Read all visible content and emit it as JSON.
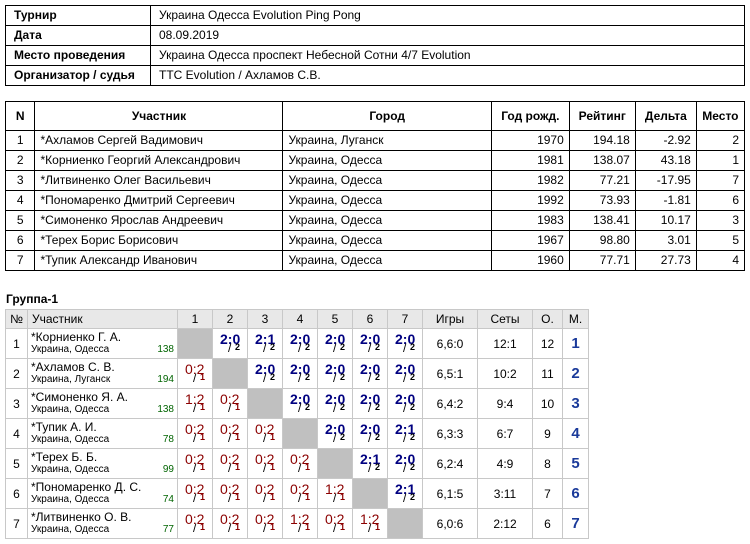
{
  "info": {
    "rows": [
      {
        "label": "Турнир",
        "value": "Украина Одесса Evolution Ping Pong"
      },
      {
        "label": "Дата",
        "value": "08.09.2019"
      },
      {
        "label": "Место проведения",
        "value": "Украина Одесса проспект Небесной Сотни 4/7 Evolution"
      },
      {
        "label": "Организатор / судья",
        "value": "TTC Evolution / Ахламов С.В."
      }
    ]
  },
  "participants": {
    "headers": [
      "N",
      "Участник",
      "Город",
      "Год рожд.",
      "Рейтинг",
      "Дельта",
      "Место"
    ],
    "rows": [
      [
        "1",
        "*Ахламов Сергей Вадимович",
        "Украина, Луганск",
        "1970",
        "194.18",
        "-2.92",
        "2"
      ],
      [
        "2",
        "*Корниенко Георгий Александрович",
        "Украина, Одесса",
        "1981",
        "138.07",
        "43.18",
        "1"
      ],
      [
        "3",
        "*Литвиненко Олег Васильевич",
        "Украина, Одесса",
        "1982",
        "77.21",
        "-17.95",
        "7"
      ],
      [
        "4",
        "*Пономаренко Дмитрий Сергеевич",
        "Украина, Одесса",
        "1992",
        "73.93",
        "-1.81",
        "6"
      ],
      [
        "5",
        "*Симоненко Ярослав Андреевич",
        "Украина, Одесса",
        "1983",
        "138.41",
        "10.17",
        "3"
      ],
      [
        "6",
        "*Терех Борис Борисович",
        "Украина, Одесса",
        "1967",
        "98.80",
        "3.01",
        "5"
      ],
      [
        "7",
        "*Тупик Александр Иванович",
        "Украина, Одесса",
        "1960",
        "77.71",
        "27.73",
        "4"
      ]
    ]
  },
  "group": {
    "title": "Группа-1",
    "headers": [
      "№",
      "Участник",
      "1",
      "2",
      "3",
      "4",
      "5",
      "6",
      "7",
      "Игры",
      "Сеты",
      "О.",
      "М."
    ],
    "rows": [
      {
        "n": "1",
        "name": "*Корниенко Г. А.",
        "city": "Украина, Одесса",
        "rating": "138",
        "results": [
          null,
          [
            "2:0",
            "2"
          ],
          [
            "2:1",
            "2"
          ],
          [
            "2:0",
            "2"
          ],
          [
            "2:0",
            "2"
          ],
          [
            "2:0",
            "2"
          ],
          [
            "2:0",
            "2"
          ]
        ],
        "games": "6,6:0",
        "sets": "12:1",
        "points": "12",
        "place": "1"
      },
      {
        "n": "2",
        "name": "*Ахламов С. В.",
        "city": "Украина, Луганск",
        "rating": "194",
        "results": [
          [
            "0:2",
            "1"
          ],
          null,
          [
            "2:0",
            "2"
          ],
          [
            "2:0",
            "2"
          ],
          [
            "2:0",
            "2"
          ],
          [
            "2:0",
            "2"
          ],
          [
            "2:0",
            "2"
          ]
        ],
        "games": "6,5:1",
        "sets": "10:2",
        "points": "11",
        "place": "2"
      },
      {
        "n": "3",
        "name": "*Симоненко Я. А.",
        "city": "Украина, Одесса",
        "rating": "138",
        "results": [
          [
            "1:2",
            "1"
          ],
          [
            "0:2",
            "1"
          ],
          null,
          [
            "2:0",
            "2"
          ],
          [
            "2:0",
            "2"
          ],
          [
            "2:0",
            "2"
          ],
          [
            "2:0",
            "2"
          ]
        ],
        "games": "6,4:2",
        "sets": "9:4",
        "points": "10",
        "place": "3"
      },
      {
        "n": "4",
        "name": "*Тупик А. И.",
        "city": "Украина, Одесса",
        "rating": "78",
        "results": [
          [
            "0:2",
            "1"
          ],
          [
            "0:2",
            "1"
          ],
          [
            "0:2",
            "1"
          ],
          null,
          [
            "2:0",
            "2"
          ],
          [
            "2:0",
            "2"
          ],
          [
            "2:1",
            "2"
          ]
        ],
        "games": "6,3:3",
        "sets": "6:7",
        "points": "9",
        "place": "4"
      },
      {
        "n": "5",
        "name": "*Терех Б. Б.",
        "city": "Украина, Одесса",
        "rating": "99",
        "results": [
          [
            "0:2",
            "1"
          ],
          [
            "0:2",
            "1"
          ],
          [
            "0:2",
            "1"
          ],
          [
            "0:2",
            "1"
          ],
          null,
          [
            "2:1",
            "2"
          ],
          [
            "2:0",
            "2"
          ]
        ],
        "games": "6,2:4",
        "sets": "4:9",
        "points": "8",
        "place": "5"
      },
      {
        "n": "6",
        "name": "*Пономаренко Д. С.",
        "city": "Украина, Одесса",
        "rating": "74",
        "results": [
          [
            "0:2",
            "1"
          ],
          [
            "0:2",
            "1"
          ],
          [
            "0:2",
            "1"
          ],
          [
            "0:2",
            "1"
          ],
          [
            "1:2",
            "1"
          ],
          null,
          [
            "2:1",
            "2"
          ]
        ],
        "games": "6,1:5",
        "sets": "3:11",
        "points": "7",
        "place": "6"
      },
      {
        "n": "7",
        "name": "*Литвиненко О. В.",
        "city": "Украина, Одесса",
        "rating": "77",
        "results": [
          [
            "0:2",
            "1"
          ],
          [
            "0:2",
            "1"
          ],
          [
            "0:2",
            "1"
          ],
          [
            "1:2",
            "1"
          ],
          [
            "0:2",
            "1"
          ],
          [
            "1:2",
            "1"
          ],
          null
        ],
        "games": "6,0:6",
        "sets": "2:12",
        "points": "6",
        "place": "7"
      }
    ]
  }
}
